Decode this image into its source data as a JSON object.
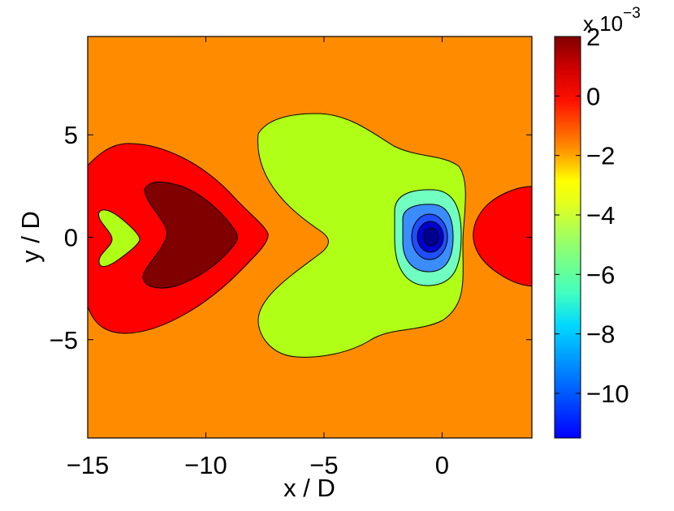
{
  "chart_data": {
    "type": "heatmap",
    "subtype": "filled-contour",
    "xlabel": "x / D",
    "ylabel": "y / D",
    "xlim": [
      -15,
      3.8
    ],
    "ylim": [
      -9.8,
      9.8
    ],
    "x_ticks": [
      -15,
      -10,
      -5,
      0
    ],
    "x_tick_labels": [
      "−15",
      "−10",
      "−5",
      "0"
    ],
    "y_ticks": [
      -5,
      0,
      5
    ],
    "y_tick_labels": [
      "−5",
      "0",
      "5"
    ],
    "colorbar": {
      "colormap": "jet",
      "range": [
        -11.5,
        2.0
      ],
      "ticks": [
        2,
        0,
        -2,
        -4,
        -6,
        -8,
        -10
      ],
      "tick_labels": [
        "2",
        "0",
        "−2",
        "−4",
        "−6",
        "−8",
        "−10"
      ],
      "multiplier_base": "x 10",
      "multiplier_exponent": "−3"
    },
    "background_level": -1.5,
    "regions": [
      {
        "name": "left-outer-lobe",
        "level": 0.5
      },
      {
        "name": "left-inner-lobe",
        "level": 2.0
      },
      {
        "name": "left-small-lobe",
        "level": -4.0
      },
      {
        "name": "central-lobe",
        "level": -4.0
      },
      {
        "name": "vortex-ring-1",
        "level": -5.5
      },
      {
        "name": "vortex-ring-2",
        "level": -7.5
      },
      {
        "name": "vortex-ring-3",
        "level": -9.0
      },
      {
        "name": "vortex-core",
        "level": -11.0
      },
      {
        "name": "right-lobe",
        "level": 0.5
      }
    ],
    "colors": {
      "background": "#ff8c00",
      "red": "#ff0000",
      "dark_red": "#800000",
      "lime": "#b0ff16",
      "aqua": "#70ffc0",
      "blue_light": "#3a8cff",
      "blue": "#1f4dff",
      "blue_dark": "#0000d0",
      "navy": "#00008f"
    }
  }
}
